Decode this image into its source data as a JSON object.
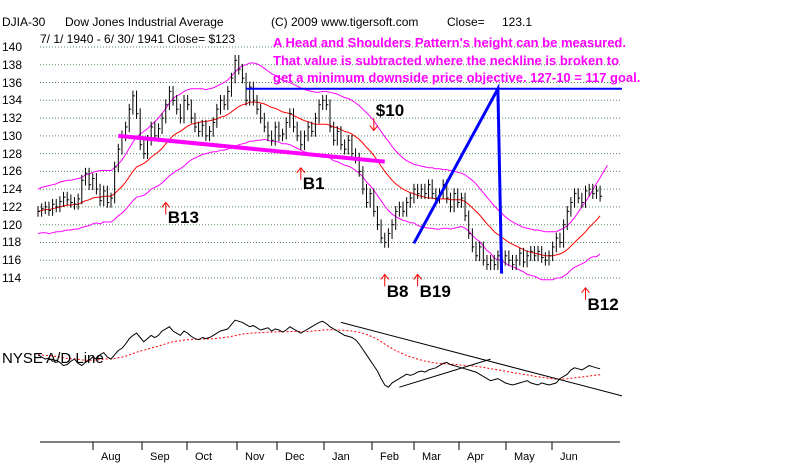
{
  "header": {
    "symbol": "DJIA-30",
    "name": "Dow Jones Industrial Average",
    "copyright": "(C) 2009 www.tigersoft.com",
    "close_label": "Close=",
    "close_value": "123.1"
  },
  "subheader": "7/ 1/ 1940 -  6/ 30/ 1941   Close= $123",
  "annotation": {
    "line1": "A Head and Shoulders Pattern's height  can be measured.",
    "line2": "That value is subtracted where the neckline is broken to",
    "line3": "get a minimum downside price objective.  127-10 = 117 goal."
  },
  "ad_label": "NYSE A/D Line",
  "colors": {
    "price": "#000000",
    "ma": "#ff0000",
    "bands": "#ff00ff",
    "neckline": "#ff00ff",
    "measure": "#0000ff",
    "signal_arrow": "#ff0000",
    "grid": "#5a8a5a"
  },
  "chart_data": {
    "type": "line",
    "y_ticks": [
      "140",
      "138",
      "136",
      "134",
      "132",
      "130",
      "128",
      "126",
      "124",
      "122",
      "120",
      "118",
      "116",
      "114"
    ],
    "ylim": [
      114,
      140
    ],
    "x_labels": [
      "Aug",
      "Sep",
      "Oct",
      "Nov",
      "Dec",
      "Jan",
      "Feb",
      "Mar",
      "Apr",
      "May",
      "Jun"
    ],
    "price": [
      121.5,
      121.8,
      122.0,
      121.6,
      122.3,
      122.0,
      122.6,
      123.1,
      122.8,
      122.5,
      122.3,
      122.9,
      125.0,
      125.8,
      124.5,
      125.2,
      124.0,
      122.7,
      123.8,
      122.5,
      123.0,
      126.5,
      128.5,
      130.0,
      131.0,
      133.0,
      134.5,
      132.5,
      129.0,
      128.0,
      129.5,
      131.0,
      130.0,
      130.8,
      132.0,
      133.5,
      135.0,
      134.0,
      133.0,
      132.0,
      134.0,
      133.5,
      132.0,
      131.0,
      130.5,
      131.2,
      130.0,
      130.5,
      131.5,
      133.0,
      134.0,
      133.5,
      135.0,
      136.5,
      138.5,
      137.5,
      136.5,
      134.0,
      135.5,
      134.0,
      133.0,
      132.0,
      131.0,
      130.0,
      129.5,
      131.0,
      130.0,
      130.2,
      131.5,
      132.5,
      131.0,
      130.0,
      129.0,
      130.0,
      131.0,
      130.5,
      132.0,
      133.5,
      134.0,
      133.5,
      131.0,
      129.5,
      130.5,
      129.0,
      128.5,
      129.5,
      128.0,
      127.5,
      126.0,
      124.0,
      122.5,
      123.5,
      121.5,
      120.0,
      118.5,
      118.0,
      119.0,
      120.0,
      121.5,
      122.0,
      121.5,
      122.5,
      123.0,
      124.0,
      123.5,
      124.0,
      123.5,
      124.5,
      123.5,
      123.0,
      123.5,
      124.5,
      123.0,
      122.0,
      123.5,
      122.5,
      123.0,
      121.0,
      119.0,
      117.5,
      116.5,
      117.5,
      116.0,
      115.5,
      116.0,
      115.5,
      116.5,
      116.0,
      116.5,
      116.0,
      115.5,
      116.0,
      116.8,
      115.8,
      116.5,
      117.0,
      116.5,
      117.0,
      116.3,
      116.0,
      116.5,
      117.5,
      118.5,
      118.0,
      120.0,
      121.5,
      122.5,
      123.5,
      123.0,
      122.5,
      123.8,
      124.0,
      123.5,
      123.8,
      123.2
    ],
    "ma": [
      121.5,
      121.6,
      121.7,
      121.7,
      121.8,
      121.9,
      122.0,
      122.1,
      122.2,
      122.2,
      122.3,
      122.3,
      122.5,
      122.7,
      122.8,
      123.0,
      123.1,
      123.1,
      123.2,
      123.2,
      123.2,
      123.5,
      123.9,
      124.3,
      124.8,
      125.4,
      126.0,
      126.5,
      126.7,
      126.9,
      127.2,
      127.6,
      127.9,
      128.2,
      128.6,
      129.1,
      129.6,
      130.0,
      130.3,
      130.5,
      130.8,
      131.1,
      131.3,
      131.4,
      131.5,
      131.6,
      131.6,
      131.7,
      131.8,
      131.9,
      132.1,
      132.2,
      132.4,
      132.7,
      133.0,
      133.3,
      133.5,
      133.6,
      133.8,
      133.8,
      133.8,
      133.7,
      133.6,
      133.4,
      133.2,
      133.1,
      132.9,
      132.7,
      132.6,
      132.5,
      132.3,
      132.1,
      131.9,
      131.7,
      131.6,
      131.4,
      131.3,
      131.3,
      131.3,
      131.3,
      131.2,
      131.0,
      130.9,
      130.7,
      130.5,
      130.4,
      130.2,
      129.9,
      129.6,
      129.2,
      128.7,
      128.3,
      127.8,
      127.2,
      126.6,
      126.0,
      125.5,
      125.0,
      124.6,
      124.3,
      124.0,
      123.8,
      123.6,
      123.5,
      123.3,
      123.2,
      123.1,
      123.0,
      123.0,
      122.9,
      122.9,
      122.9,
      122.9,
      122.8,
      122.8,
      122.8,
      122.8,
      122.6,
      122.3,
      121.9,
      121.5,
      121.1,
      120.6,
      120.1,
      119.7,
      119.2,
      118.9,
      118.6,
      118.3,
      118.0,
      117.8,
      117.6,
      117.4,
      117.2,
      117.0,
      116.9,
      116.8,
      116.7,
      116.6,
      116.5,
      116.5,
      116.5,
      116.6,
      116.7,
      116.9,
      117.2,
      117.6,
      118.0,
      118.4,
      118.8,
      119.2,
      119.7,
      120.1,
      120.5,
      121.0
    ],
    "upper_band": [
      124.0,
      124.2,
      124.3,
      124.4,
      124.5,
      124.6,
      124.8,
      124.9,
      125.0,
      125.0,
      125.1,
      125.2,
      125.3,
      125.6,
      125.7,
      125.9,
      126.0,
      126.1,
      126.1,
      126.1,
      126.1,
      126.4,
      126.8,
      127.3,
      127.9,
      128.6,
      129.3,
      129.9,
      130.2,
      130.5,
      130.8,
      131.2,
      131.6,
      132.0,
      132.5,
      133.1,
      133.7,
      134.2,
      134.5,
      134.7,
      135.0,
      135.2,
      135.3,
      135.3,
      135.3,
      135.3,
      135.2,
      135.3,
      135.4,
      135.6,
      135.8,
      136.0,
      136.3,
      136.7,
      137.2,
      137.6,
      137.9,
      138.0,
      138.2,
      138.2,
      138.1,
      137.9,
      137.6,
      137.3,
      137.0,
      136.8,
      136.5,
      136.3,
      136.1,
      136.0,
      135.8,
      135.6,
      135.4,
      135.2,
      135.1,
      135.0,
      134.9,
      134.9,
      135.0,
      135.0,
      134.9,
      134.8,
      134.7,
      134.5,
      134.3,
      134.2,
      134.0,
      133.7,
      133.4,
      133.0,
      132.6,
      132.2,
      131.7,
      131.1,
      130.5,
      129.9,
      129.4,
      128.8,
      128.3,
      127.9,
      127.5,
      127.2,
      127.0,
      126.8,
      126.7,
      126.6,
      126.5,
      126.4,
      126.4,
      126.3,
      126.3,
      126.2,
      126.2,
      126.1,
      126.0,
      125.9,
      125.8,
      125.6,
      125.3,
      125.0,
      124.6,
      124.1,
      123.6,
      123.1,
      122.6,
      122.1,
      121.7,
      121.3,
      120.9,
      120.6,
      120.3,
      120.1,
      119.9,
      119.7,
      119.6,
      119.5,
      119.4,
      119.4,
      119.3,
      119.2,
      119.2,
      119.2,
      119.2,
      119.4,
      119.6,
      119.9,
      120.3,
      120.8,
      121.4,
      122.0,
      122.6,
      123.2,
      123.9,
      124.6,
      125.3,
      126.0,
      126.7
    ],
    "lower_band": [
      119.0,
      119.1,
      119.1,
      119.0,
      119.1,
      119.2,
      119.2,
      119.3,
      119.4,
      119.4,
      119.5,
      119.5,
      119.7,
      119.8,
      119.9,
      120.1,
      120.2,
      120.1,
      120.3,
      120.3,
      120.3,
      120.6,
      121.0,
      121.3,
      121.7,
      122.2,
      122.7,
      123.1,
      123.2,
      123.3,
      123.6,
      124.0,
      124.2,
      124.4,
      124.7,
      125.1,
      125.5,
      125.8,
      126.1,
      126.3,
      126.6,
      127.0,
      127.3,
      127.5,
      127.7,
      127.9,
      128.0,
      128.1,
      128.2,
      128.2,
      128.4,
      128.4,
      128.5,
      128.7,
      128.8,
      129.0,
      129.1,
      129.2,
      129.4,
      129.4,
      129.5,
      129.5,
      129.6,
      129.5,
      129.4,
      129.4,
      129.3,
      129.1,
      129.1,
      129.0,
      128.8,
      128.6,
      128.4,
      128.2,
      128.1,
      127.8,
      127.7,
      127.7,
      127.6,
      127.6,
      127.5,
      127.2,
      127.1,
      126.9,
      126.7,
      126.6,
      126.4,
      126.1,
      125.8,
      125.4,
      124.8,
      124.4,
      123.9,
      123.3,
      122.7,
      122.1,
      121.6,
      121.2,
      120.9,
      120.7,
      120.5,
      120.4,
      120.2,
      120.2,
      119.9,
      119.8,
      119.7,
      119.6,
      119.6,
      119.5,
      119.5,
      119.6,
      119.6,
      119.5,
      119.6,
      119.7,
      119.8,
      119.6,
      119.3,
      118.8,
      118.4,
      118.1,
      117.6,
      117.1,
      116.8,
      116.2,
      116.1,
      115.9,
      115.7,
      115.4,
      115.3,
      115.1,
      114.9,
      114.7,
      114.4,
      114.3,
      114.2,
      114.0,
      113.8,
      113.8,
      113.8,
      113.8,
      114.0,
      114.0,
      114.2,
      114.5,
      114.9,
      115.2,
      115.4,
      115.6,
      115.8,
      116.2,
      116.4,
      116.4,
      116.7
    ],
    "neckline": {
      "x": [
        22,
        95
      ],
      "y": [
        130.0,
        127.1
      ]
    },
    "measure_line": [
      [
        103,
        117.9
      ],
      [
        126,
        135.3
      ],
      [
        127,
        114.5
      ]
    ],
    "target_line": {
      "x": [
        57,
        160
      ],
      "y": [
        135.3,
        135.3
      ]
    },
    "signals": [
      {
        "label": "B13",
        "x": 35,
        "at": 122.5,
        "text_y": 120.8,
        "dir": "up"
      },
      {
        "label": "B1",
        "x": 72,
        "at": 126.4,
        "text_y": 124.6,
        "dir": "up"
      },
      {
        "label": "$10",
        "x": 92,
        "at": 130.6,
        "text_y": 132.8,
        "dir": "down"
      },
      {
        "label": "B8",
        "x": 95,
        "at": 114.4,
        "text_y": 112.4,
        "dir": "up"
      },
      {
        "label": "B19",
        "x": 104,
        "at": 114.4,
        "text_y": 112.4,
        "dir": "up"
      },
      {
        "label": "B12",
        "x": 150,
        "at": 112.9,
        "text_y": 111.0,
        "dir": "up"
      }
    ],
    "ad_line": [
      40,
      38,
      36,
      37,
      34,
      35,
      33,
      30,
      31,
      34,
      36,
      32,
      30,
      33,
      35,
      38,
      36,
      40,
      42,
      38,
      36,
      40,
      44,
      46,
      50,
      55,
      58,
      60,
      56,
      52,
      55,
      58,
      56,
      58,
      62,
      64,
      66,
      62,
      60,
      58,
      62,
      60,
      57,
      55,
      54,
      56,
      55,
      56,
      58,
      60,
      62,
      63,
      64,
      68,
      72,
      71,
      70,
      68,
      66,
      67,
      65,
      63,
      64,
      65,
      62,
      64,
      63,
      61,
      63,
      66,
      64,
      62,
      60,
      62,
      64,
      66,
      68,
      70,
      71,
      69,
      66,
      64,
      62,
      60,
      58,
      57,
      56,
      54,
      50,
      45,
      40,
      35,
      30,
      25,
      18,
      12,
      10,
      14,
      16,
      18,
      20,
      22,
      21,
      22,
      24,
      25,
      24,
      26,
      27,
      28,
      30,
      32,
      33,
      31,
      30,
      29,
      28,
      27,
      26,
      25,
      24,
      22,
      20,
      18,
      16,
      17,
      18,
      16,
      14,
      13,
      12,
      13,
      14,
      15,
      16,
      14,
      13,
      12,
      14,
      13,
      12,
      13,
      14,
      18,
      20,
      22,
      26,
      28,
      27,
      26,
      28,
      30,
      29,
      28,
      27
    ],
    "ad_ma": [
      40,
      39.8,
      39.5,
      39.2,
      38.8,
      38.4,
      37.9,
      37.3,
      36.7,
      36.4,
      36.2,
      35.8,
      35.3,
      35.0,
      34.9,
      35.1,
      35.2,
      35.6,
      36.0,
      36.2,
      36.2,
      36.6,
      37.2,
      37.9,
      38.8,
      39.9,
      41.1,
      42.4,
      43.4,
      44.2,
      45.2,
      46.2,
      47.1,
      48.0,
      49.1,
      50.2,
      51.3,
      52.0,
      52.6,
      53.0,
      53.6,
      54.0,
      54.3,
      54.4,
      54.4,
      54.6,
      54.6,
      54.7,
      54.9,
      55.2,
      55.6,
      56.0,
      56.4,
      57.0,
      57.8,
      58.5,
      59.1,
      59.5,
      59.9,
      60.2,
      60.4,
      60.5,
      60.7,
      60.9,
      61.0,
      61.2,
      61.3,
      61.3,
      61.4,
      61.6,
      61.7,
      61.7,
      61.6,
      61.6,
      61.7,
      61.9,
      62.2,
      62.5,
      62.9,
      63.1,
      63.2,
      63.2,
      63.1,
      62.9,
      62.6,
      62.3,
      61.9,
      61.4,
      60.8,
      59.9,
      58.8,
      57.5,
      56.0,
      54.3,
      52.2,
      49.9,
      47.7,
      45.8,
      44.0,
      42.3,
      40.8,
      39.4,
      38.1,
      37.0,
      36.0,
      35.1,
      34.2,
      33.5,
      32.9,
      32.4,
      32.0,
      31.8,
      31.6,
      31.3,
      31.1,
      30.8,
      30.5,
      30.2,
      29.9,
      29.6,
      29.2,
      28.8,
      28.3,
      27.7,
      27.1,
      26.6,
      26.1,
      25.5,
      24.9,
      24.2,
      23.6,
      23.0,
      22.4,
      21.9,
      21.4,
      20.8,
      20.2,
      19.6,
      19.2,
      18.7,
      18.2,
      17.8,
      17.5,
      17.5,
      17.6,
      17.8,
      18.2,
      18.7,
      19.1,
      19.4,
      19.9,
      20.4,
      20.8,
      21.2,
      21.6
    ],
    "ad_trend_down": [
      [
        83,
        70
      ],
      [
        160,
        2
      ]
    ],
    "ad_trend_up": [
      [
        99,
        10
      ],
      [
        124,
        36
      ]
    ]
  }
}
